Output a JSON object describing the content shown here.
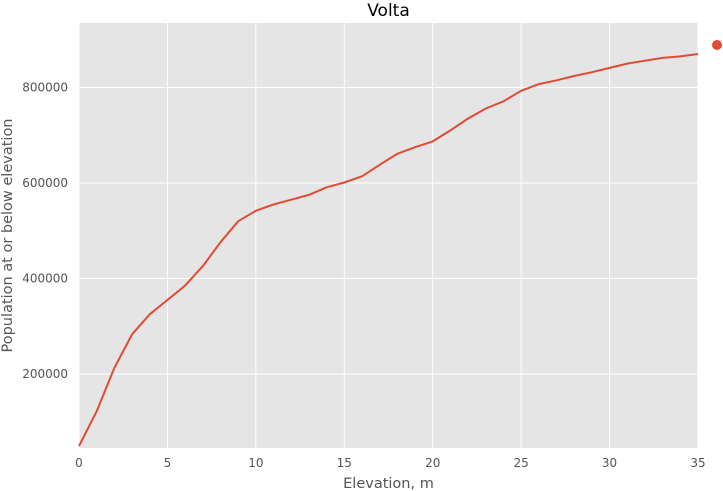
{
  "chart_data": {
    "type": "line",
    "title": "Volta",
    "xlabel": "Elevation, m",
    "ylabel": "Population at or below elevation",
    "xlim": [
      0,
      35
    ],
    "ylim": [
      45000,
      935000
    ],
    "x_ticks": [
      0,
      5,
      10,
      15,
      20,
      25,
      30,
      35
    ],
    "x_tick_labels": [
      "0",
      "5",
      "10",
      "15",
      "20",
      "25",
      "30",
      "35"
    ],
    "y_ticks": [
      200000,
      400000,
      600000,
      800000
    ],
    "y_tick_labels": [
      "200000",
      "400000",
      "600000",
      "800000"
    ],
    "grid": true,
    "background": "#e5e5e5",
    "series": [
      {
        "color": "#e24a33",
        "x": [
          0,
          1,
          2,
          3,
          4,
          5,
          6,
          7,
          8,
          9,
          10,
          11,
          12,
          13,
          14,
          15,
          16,
          17,
          18,
          19,
          20,
          21,
          22,
          23,
          24,
          25,
          26,
          27,
          28,
          29,
          30,
          31,
          32,
          33,
          34,
          35
        ],
        "values": [
          49000,
          122000,
          213000,
          283000,
          325000,
          355000,
          385000,
          426000,
          476000,
          520000,
          542000,
          555000,
          565000,
          575000,
          591000,
          601000,
          614000,
          638000,
          661000,
          675000,
          687000,
          710000,
          735000,
          756000,
          771000,
          793000,
          807000,
          815000,
          824000,
          832000,
          841000,
          850000,
          856000,
          862000,
          865000,
          870000
        ]
      }
    ],
    "legend": {
      "placement": "right",
      "marker_color": "#e24a33"
    }
  }
}
